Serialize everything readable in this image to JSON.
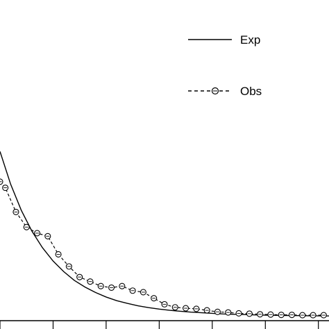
{
  "chart_data": {
    "type": "line",
    "title": "",
    "xlabel": "",
    "ylabel": "",
    "grid": false,
    "legend_position": "top-right",
    "xlim": [
      0,
      31
    ],
    "ylim": [
      0,
      100
    ],
    "series": [
      {
        "name": "Exp",
        "style": "solid",
        "color": "#000000",
        "x": [
          0,
          1,
          2,
          3,
          4,
          5,
          6,
          7,
          8,
          9,
          10,
          11,
          12,
          13,
          14,
          15,
          16,
          17,
          18,
          19,
          20,
          21,
          22,
          23,
          24,
          25,
          26,
          27,
          28,
          29,
          30,
          31
        ],
        "values": [
          55,
          44.2,
          35.6,
          28.7,
          23.2,
          18.8,
          15.3,
          12.4,
          10.2,
          8.4,
          6.9,
          5.7,
          4.8,
          4.0,
          3.4,
          2.9,
          2.5,
          2.2,
          1.9,
          1.7,
          1.5,
          1.3,
          1.2,
          1.1,
          1.0,
          0.9,
          0.85,
          0.8,
          0.75,
          0.7,
          0.68,
          0.65
        ]
      },
      {
        "name": "Obs",
        "style": "dashed",
        "marker": "circle",
        "color": "#000000",
        "x": [
          0,
          0.5,
          1.5,
          2.5,
          3.5,
          4.5,
          5.5,
          6.5,
          7.5,
          8.5,
          9.5,
          10.5,
          11.5,
          12.5,
          13.5,
          14.5,
          15.5,
          16.5,
          17.5,
          18.5,
          19.5,
          20.5,
          21.5,
          22.5,
          23.5,
          24.5,
          25.5,
          26.5,
          27.5,
          28.5,
          29.5,
          30.5
        ],
        "values": [
          45,
          43,
          35,
          30,
          28,
          27,
          21,
          17,
          13.5,
          12,
          10.5,
          10,
          10.5,
          9,
          8.5,
          6.5,
          4.5,
          3.5,
          3.2,
          3.0,
          2.5,
          2.0,
          1.8,
          1.5,
          1.4,
          1.2,
          1.1,
          1.0,
          1.0,
          0.9,
          0.9,
          0.9
        ]
      }
    ],
    "legend": [
      {
        "label": "Exp",
        "style": "solid"
      },
      {
        "label": "Obs",
        "style": "dashed-circle"
      }
    ]
  }
}
